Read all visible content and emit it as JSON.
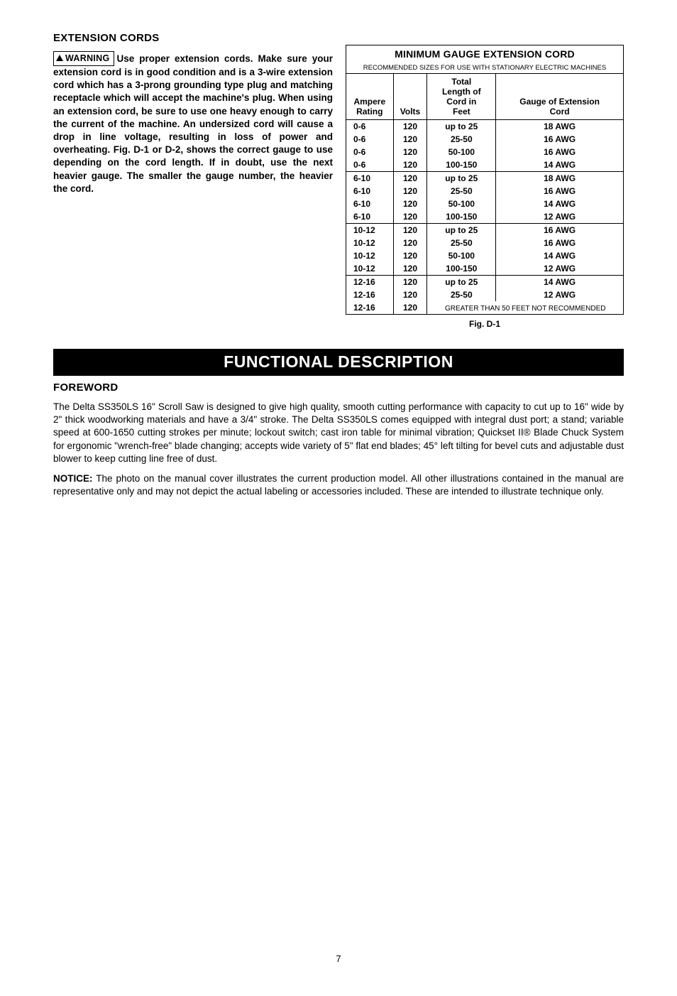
{
  "page_number": "7",
  "section1": {
    "heading": "EXTENSION CORDS",
    "warning_label": "WARNING",
    "warning_text": "Use proper extension cords. Make sure your extension cord is in good condition and is a 3-wire extension cord which has a 3-prong grounding type plug and matching receptacle which will accept the machine's plug. When using an extension cord, be sure to use one heavy enough to carry the current of the machine. An undersized cord will cause a drop in line voltage, resulting in loss of power and overheating. Fig. D-1 or D-2, shows the correct gauge to use depending on the cord length. If in doubt, use the next heavier gauge. The smaller the gauge number, the heavier the cord."
  },
  "table": {
    "title": "MINIMUM GAUGE EXTENSION CORD",
    "subtitle": "RECOMMENDED SIZES FOR USE WITH STATIONARY ELECTRIC MACHINES",
    "columns": [
      "Ampere Rating",
      "Volts",
      "Total Length of Cord in Feet",
      "Gauge of Extension Cord"
    ],
    "col1_lines": [
      "Ampere",
      "Rating"
    ],
    "col3_lines": [
      "Total",
      "Length of",
      "Cord in",
      "Feet"
    ],
    "col4_lines": [
      "Gauge of Extension",
      "Cord"
    ],
    "groups": [
      {
        "rows": [
          [
            "0-6",
            "120",
            "up to 25",
            "18 AWG"
          ],
          [
            "0-6",
            "120",
            "25-50",
            "16 AWG"
          ],
          [
            "0-6",
            "120",
            "50-100",
            "16 AWG"
          ],
          [
            "0-6",
            "120",
            "100-150",
            "14 AWG"
          ]
        ]
      },
      {
        "rows": [
          [
            "6-10",
            "120",
            "up to 25",
            "18 AWG"
          ],
          [
            "6-10",
            "120",
            "25-50",
            "16 AWG"
          ],
          [
            "6-10",
            "120",
            "50-100",
            "14 AWG"
          ],
          [
            "6-10",
            "120",
            "100-150",
            "12 AWG"
          ]
        ]
      },
      {
        "rows": [
          [
            "10-12",
            "120",
            "up to 25",
            "16 AWG"
          ],
          [
            "10-12",
            "120",
            "25-50",
            "16 AWG"
          ],
          [
            "10-12",
            "120",
            "50-100",
            "14 AWG"
          ],
          [
            "10-12",
            "120",
            "100-150",
            "12 AWG"
          ]
        ]
      },
      {
        "rows": [
          [
            "12-16",
            "120",
            "up to 25",
            "14 AWG"
          ],
          [
            "12-16",
            "120",
            "25-50",
            "12 AWG"
          ]
        ],
        "note": [
          "12-16",
          "120",
          "GREATER THAN 50 FEET NOT RECOMMENDED"
        ]
      }
    ],
    "caption": "Fig. D-1"
  },
  "banner": "FUNCTIONAL DESCRIPTION",
  "section2": {
    "heading": "FOREWORD",
    "para1": "The Delta SS350LS 16\" Scroll Saw is designed to give high quality, smooth cutting performance with capacity to cut up to 16\" wide by 2\" thick woodworking materials and have a 3/4\" stroke. The Delta SS350LS comes equipped with integral dust port; a stand; variable speed at 600-1650 cutting strokes per minute; lockout switch; cast iron table for minimal vibration; Quickset II® Blade Chuck System for ergonomic \"wrench-free\" blade changing; accepts wide variety of 5\" flat end blades; 45° left tilting for bevel cuts and adjustable dust blower to keep cutting line free of dust.",
    "notice_label": "NOTICE:",
    "para2": " The photo on the manual cover illustrates the current production model. All other illustrations contained in the manual are representative only and may not depict the actual labeling or accessories included. These are intended to illustrate technique only."
  },
  "style": {
    "body_font_size_pt": 10,
    "heading_font_size_pt": 11,
    "banner_font_size_pt": 17,
    "table_font_size_pt": 9,
    "colors": {
      "text": "#000000",
      "background": "#ffffff",
      "banner_bg": "#000000",
      "banner_text": "#ffffff"
    }
  }
}
